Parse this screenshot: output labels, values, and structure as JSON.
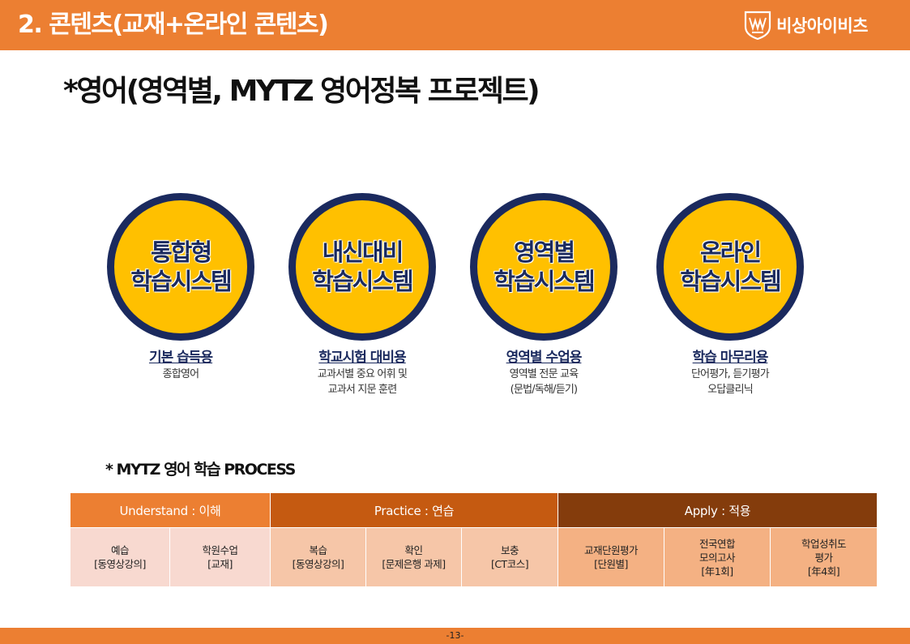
{
  "header": {
    "title": "2. 콘텐츠(교재+온라인 콘텐츠)",
    "logo_text": "비상아이비츠",
    "logo_icon": "mytz-shield-icon"
  },
  "main_title": "*영어(영역별, MYTZ 영어정복 프로젝트)",
  "systems": [
    {
      "line1": "통합형",
      "line2": "학습시스템",
      "title": "기본 습득용",
      "desc": [
        "종합영어"
      ]
    },
    {
      "line1": "내신대비",
      "line2": "학습시스템",
      "title": "학교시험 대비용",
      "desc": [
        "교과서별 중요 어휘 및",
        "교과서 지문 훈련"
      ]
    },
    {
      "line1": "영역별",
      "line2": "학습시스템",
      "title": "영역별 수업용",
      "desc": [
        "영역별 전문 교육",
        "(문법/독해/듣기)"
      ]
    },
    {
      "line1": "온라인",
      "line2": "학습시스템",
      "title": "학습 마무리용",
      "desc": [
        "단어평가, 듣기평가",
        "오답클리닉"
      ]
    }
  ],
  "process": {
    "title": "* MYTZ 영어 학습 PROCESS",
    "phases": [
      {
        "label": "Understand : 이해",
        "steps": [
          {
            "lines": [
              "예습",
              "[동영상강의]"
            ]
          },
          {
            "lines": [
              "학원수업",
              "[교재]"
            ]
          }
        ]
      },
      {
        "label": "Practice : 연습",
        "steps": [
          {
            "lines": [
              "복습",
              "[동영상강의]"
            ]
          },
          {
            "lines": [
              "확인",
              "[문제은행 과제]"
            ]
          },
          {
            "lines": [
              "보충",
              "[CT코스]"
            ]
          }
        ]
      },
      {
        "label": "Apply : 적용",
        "steps": [
          {
            "lines": [
              "교재단원평가",
              "[단원별]"
            ]
          },
          {
            "lines": [
              "전국연합",
              "모의고사",
              "[年1회]"
            ]
          },
          {
            "lines": [
              "학업성취도",
              "평가",
              "[年4회]"
            ]
          }
        ]
      }
    ]
  },
  "footer": {
    "page": "-13-"
  },
  "colors": {
    "orange": "#ec7f32",
    "dark_orange": "#c55a11",
    "brown": "#843c0c",
    "yellow": "#ffc000",
    "navy": "#1b2a5e"
  }
}
